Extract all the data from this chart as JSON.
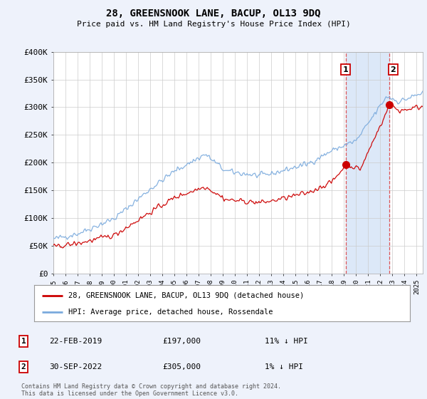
{
  "title": "28, GREENSNOOK LANE, BACUP, OL13 9DQ",
  "subtitle": "Price paid vs. HM Land Registry's House Price Index (HPI)",
  "background_color": "#eef2fb",
  "plot_bg_color": "#ffffff",
  "red_label": "28, GREENSNOOK LANE, BACUP, OL13 9DQ (detached house)",
  "blue_label": "HPI: Average price, detached house, Rossendale",
  "annotation1_box": "1",
  "annotation1_date": "22-FEB-2019",
  "annotation1_price": "£197,000",
  "annotation1_change": "11% ↓ HPI",
  "annotation2_box": "2",
  "annotation2_date": "30-SEP-2022",
  "annotation2_price": "£305,000",
  "annotation2_change": "1% ↓ HPI",
  "footer": "Contains HM Land Registry data © Crown copyright and database right 2024.\nThis data is licensed under the Open Government Licence v3.0.",
  "xmin": 1995.0,
  "xmax": 2025.5,
  "ymin": 0,
  "ymax": 400000,
  "yticks": [
    0,
    50000,
    100000,
    150000,
    200000,
    250000,
    300000,
    350000,
    400000
  ],
  "ytick_labels": [
    "£0",
    "£50K",
    "£100K",
    "£150K",
    "£200K",
    "£250K",
    "£300K",
    "£350K",
    "£400K"
  ],
  "xtick_years": [
    1995,
    1996,
    1997,
    1998,
    1999,
    2000,
    2001,
    2002,
    2003,
    2004,
    2005,
    2006,
    2007,
    2008,
    2009,
    2010,
    2011,
    2012,
    2013,
    2014,
    2015,
    2016,
    2017,
    2018,
    2019,
    2020,
    2021,
    2022,
    2023,
    2024,
    2025
  ],
  "sale1_x": 2019.13,
  "sale1_y": 197000,
  "sale2_x": 2022.75,
  "sale2_y": 305000,
  "vline1_x": 2019.13,
  "vline2_x": 2022.75,
  "red_color": "#cc0000",
  "blue_color": "#7aaadd",
  "vline_color": "#dd4444",
  "fill_color": "#dce8f8"
}
